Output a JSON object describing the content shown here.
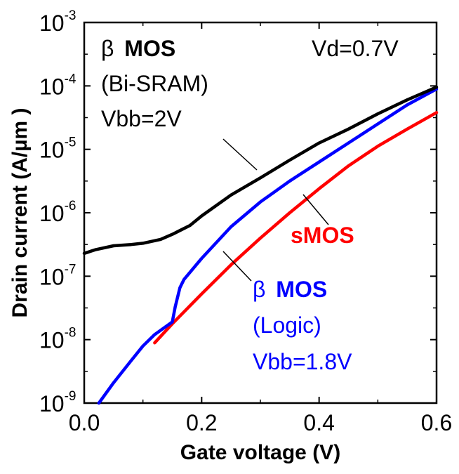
{
  "chart_data": {
    "type": "line",
    "title": "",
    "xlabel": "Gate voltage (V)",
    "ylabel": "Drain current (A/µm )",
    "xlim": [
      0.0,
      0.6
    ],
    "ylim_log10": [
      -9,
      -3
    ],
    "yscale": "log",
    "x_ticks": [
      {
        "value": 0.0,
        "label": "0.0"
      },
      {
        "value": 0.2,
        "label": "0.2"
      },
      {
        "value": 0.4,
        "label": "0.4"
      },
      {
        "value": 0.6,
        "label": "0.6"
      }
    ],
    "y_ticks": [
      {
        "exp": -9,
        "base": "10",
        "sup": "-9"
      },
      {
        "exp": -8,
        "base": "10",
        "sup": "-8"
      },
      {
        "exp": -7,
        "base": "10",
        "sup": "-7"
      },
      {
        "exp": -6,
        "base": "10",
        "sup": "-6"
      },
      {
        "exp": -5,
        "base": "10",
        "sup": "-5"
      },
      {
        "exp": -4,
        "base": "10",
        "sup": "-4"
      },
      {
        "exp": -3,
        "base": "10",
        "sup": "-3"
      }
    ],
    "series": [
      {
        "name": "sMOS",
        "color": "#ff0000",
        "x": [
          0.12,
          0.15,
          0.2,
          0.25,
          0.3,
          0.35,
          0.4,
          0.45,
          0.5,
          0.55,
          0.6
        ],
        "log10y": [
          -8.05,
          -7.75,
          -7.28,
          -6.82,
          -6.4,
          -6.0,
          -5.62,
          -5.26,
          -4.95,
          -4.68,
          -4.42
        ]
      },
      {
        "name": "β MOS (Logic) Vbb=1.8V",
        "color": "#0000ff",
        "x": [
          0.025,
          0.05,
          0.08,
          0.1,
          0.12,
          0.15,
          0.155,
          0.163,
          0.17,
          0.2,
          0.25,
          0.3,
          0.35,
          0.4,
          0.45,
          0.5,
          0.55,
          0.6
        ],
        "log10y": [
          -9.0,
          -8.68,
          -8.33,
          -8.1,
          -7.92,
          -7.72,
          -7.48,
          -7.18,
          -7.05,
          -6.72,
          -6.22,
          -5.83,
          -5.5,
          -5.2,
          -4.9,
          -4.6,
          -4.3,
          -4.05
        ]
      },
      {
        "name": "β MOS (Bi-SRAM) Vbb=2V",
        "color": "#000000",
        "x": [
          0.0,
          0.02,
          0.05,
          0.08,
          0.1,
          0.13,
          0.15,
          0.18,
          0.2,
          0.25,
          0.3,
          0.35,
          0.4,
          0.45,
          0.5,
          0.55,
          0.6
        ],
        "log10y": [
          -6.64,
          -6.58,
          -6.52,
          -6.5,
          -6.48,
          -6.42,
          -6.34,
          -6.2,
          -6.05,
          -5.72,
          -5.45,
          -5.17,
          -4.9,
          -4.68,
          -4.44,
          -4.22,
          -4.02
        ]
      }
    ],
    "annotations": {
      "vd": "Vd=0.7V",
      "black_beta": "β",
      "black_mos": "MOS",
      "black_sub": "(Bi-SRAM)",
      "black_vbb": "Vbb=2V",
      "red": "sMOS",
      "blue_beta": "β",
      "blue_mos": "MOS",
      "blue_sub": "(Logic)",
      "blue_vbb": "Vbb=1.8V"
    }
  }
}
